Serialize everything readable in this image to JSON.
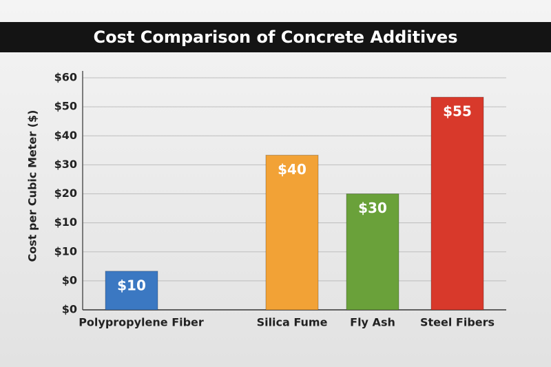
{
  "chart_data": {
    "type": "bar",
    "title": "Cost Comparison of Concrete Additives",
    "ylabel": "Cost per Cubic Meter ($)",
    "categories": [
      "Polypropylene Fiber",
      "Silica Fume",
      "Fly Ash",
      "Steel Fibers"
    ],
    "values": [
      10,
      40,
      30,
      55
    ],
    "value_labels": [
      "$10",
      "$40",
      "$30",
      "$55"
    ],
    "colors": [
      "#3b78c2",
      "#f2a236",
      "#6aa13a",
      "#d8392b"
    ],
    "ylim": [
      0,
      60
    ],
    "ytick_labels": [
      "$60",
      "$50",
      "$40",
      "$30",
      "$20",
      "$10",
      "$10",
      "$0",
      "$0"
    ],
    "grid": true
  }
}
